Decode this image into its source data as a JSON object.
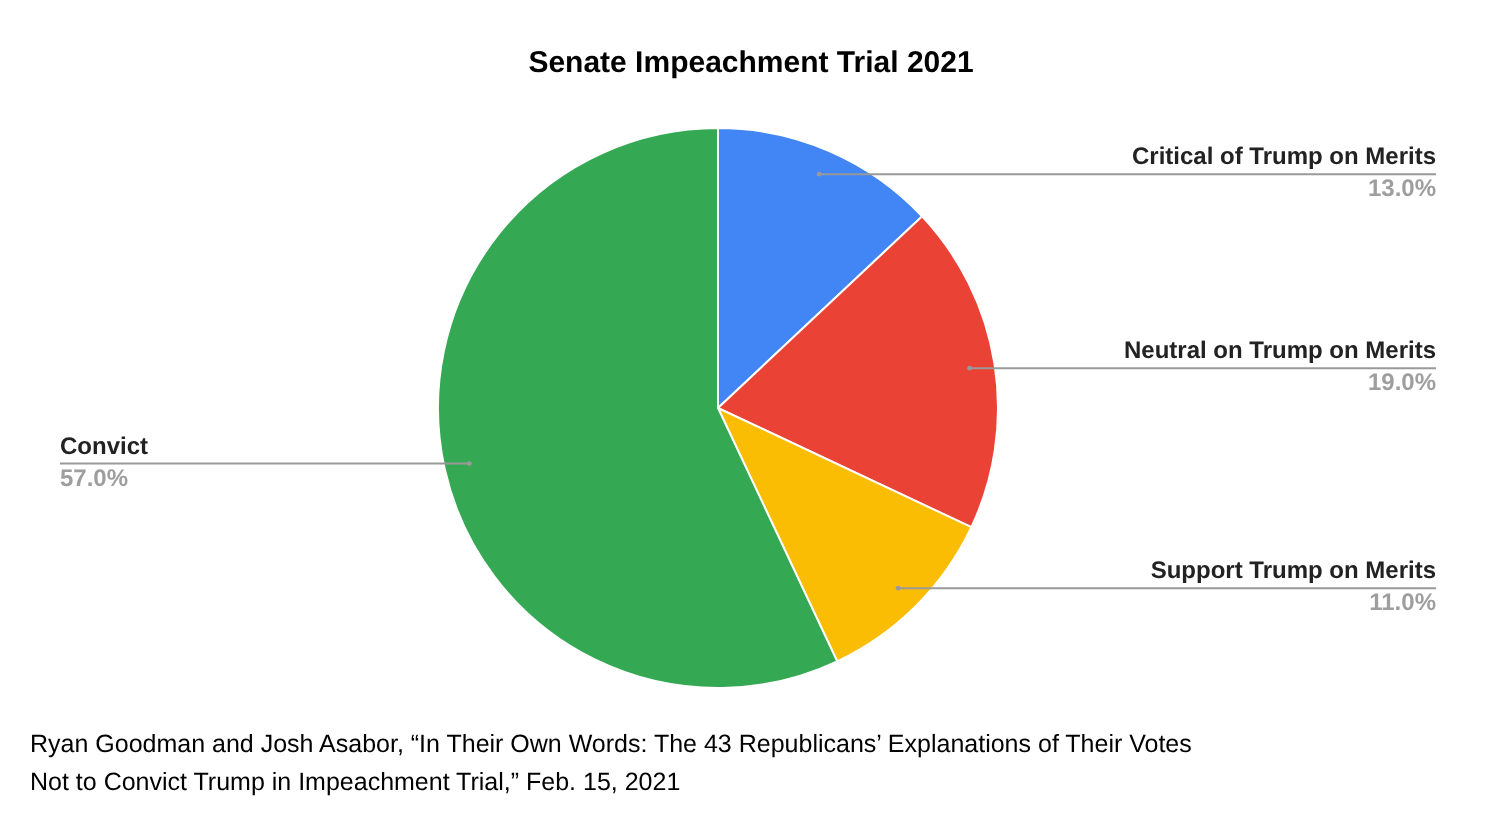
{
  "chart_data": {
    "type": "pie",
    "title": "Senate Impeachment Trial 2021",
    "categories": [
      "Critical of Trump on Merits",
      "Neutral on Trump on Merits",
      "Support Trump on Merits",
      "Convict"
    ],
    "values": [
      13,
      19,
      11,
      57
    ],
    "colors": [
      "#4285f4",
      "#ea4335",
      "#fbbc04",
      "#34a853"
    ],
    "value_labels": [
      "13.0%",
      "19.0%",
      "11.0%",
      "57.0%"
    ],
    "annotations": [
      "Ryan Goodman and Josh Asabor, “In Their Own Words: The 43 Republicans’ Explanations of Their Votes Not to Convict Trump in Impeachment Trial,” Feb. 15, 2021"
    ]
  }
}
